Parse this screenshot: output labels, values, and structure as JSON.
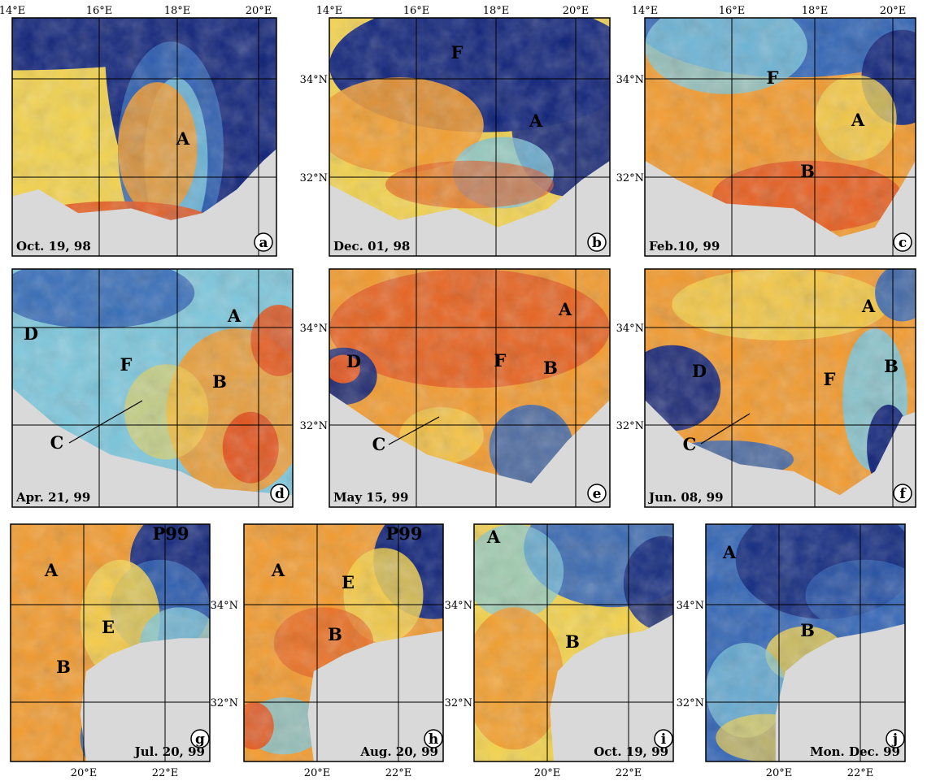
{
  "colors": {
    "land": "#d9d9d9",
    "deep_blue": "#10237a",
    "blue": "#2f63b5",
    "cyan": "#7cc7dc",
    "yellow": "#f3d24b",
    "orange": "#f39a2c",
    "red_orange": "#e4541d",
    "grid": "#000000",
    "red_label": "#e8431f"
  },
  "axes": {
    "top_lon": [
      "14°E",
      "16°E",
      "18°E",
      "20°E"
    ],
    "lat": [
      "34°N",
      "32°N"
    ],
    "bottom_lon": [
      "20°E",
      "22°E"
    ]
  },
  "panels": [
    {
      "id": "a",
      "date": "Oct. 19, 98",
      "labels": [
        {
          "text": "A"
        }
      ]
    },
    {
      "id": "b",
      "date": "Dec. 01, 98",
      "labels": [
        {
          "text": "F",
          "color": "red"
        },
        {
          "text": "A"
        }
      ]
    },
    {
      "id": "c",
      "date": "Feb.10, 99",
      "labels": [
        {
          "text": "F"
        },
        {
          "text": "A"
        },
        {
          "text": "B"
        }
      ]
    },
    {
      "id": "d",
      "date": "Apr. 21, 99",
      "labels": [
        {
          "text": "A"
        },
        {
          "text": "D"
        },
        {
          "text": "F"
        },
        {
          "text": "B"
        },
        {
          "text": "C"
        }
      ]
    },
    {
      "id": "e",
      "date": "May 15, 99",
      "labels": [
        {
          "text": "A"
        },
        {
          "text": "D"
        },
        {
          "text": "F"
        },
        {
          "text": "B"
        },
        {
          "text": "C"
        }
      ]
    },
    {
      "id": "f",
      "date": "Jun. 08, 99",
      "labels": [
        {
          "text": "A"
        },
        {
          "text": "D"
        },
        {
          "text": "F"
        },
        {
          "text": "B"
        },
        {
          "text": "C"
        }
      ]
    },
    {
      "id": "g",
      "date": "Jul. 20, 99",
      "labels": [
        {
          "text": "P99"
        },
        {
          "text": "A"
        },
        {
          "text": "E"
        },
        {
          "text": "B"
        }
      ]
    },
    {
      "id": "h",
      "date": "Aug. 20, 99",
      "labels": [
        {
          "text": "P99"
        },
        {
          "text": "A"
        },
        {
          "text": "E"
        },
        {
          "text": "B"
        }
      ]
    },
    {
      "id": "i",
      "date": "Oct. 19, 99",
      "labels": [
        {
          "text": "A"
        },
        {
          "text": "B"
        }
      ]
    },
    {
      "id": "j",
      "date": "Mon. Dec. 99",
      "labels": [
        {
          "text": "A"
        },
        {
          "text": "B"
        }
      ]
    }
  ]
}
